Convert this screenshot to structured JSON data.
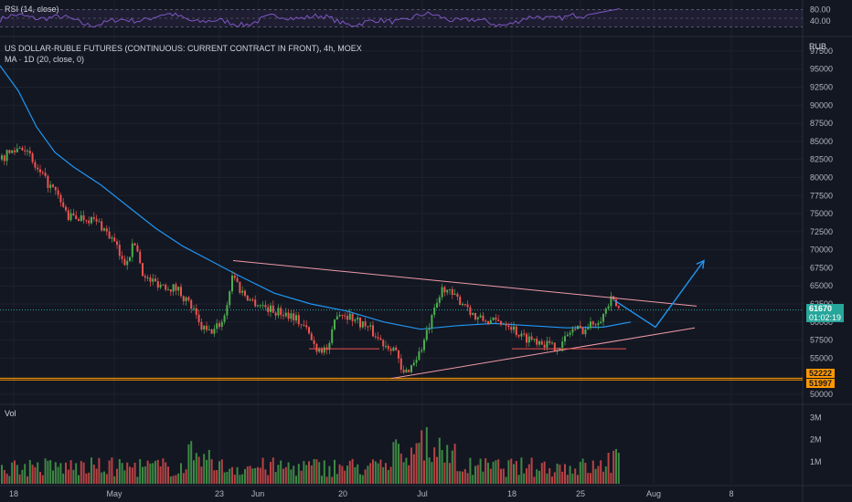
{
  "theme": {
    "background": "#131722",
    "grid": "#1e222d",
    "up_color": "#26a69a",
    "candle_up": "#4caf50",
    "candle_down": "#ef5350",
    "ma_color": "#2196f3",
    "pattern_color": "#ef9aa8",
    "support_color": "#ef5350",
    "projection_color": "#2196f3",
    "rsi_color": "#7e57c2",
    "level_color": "#ff9800"
  },
  "rsi_panel": {
    "label": "RSI (14, close)",
    "ticks": [
      "80.00",
      "40.00"
    ]
  },
  "header": {
    "title": "US DOLLAR-RUBLE FUTURES (CONTINUOUS: CURRENT CONTRACT IN FRONT), 4h, MOEX",
    "ma_label": "MA · 1D (20, close, 0)",
    "currency": "RUB"
  },
  "price_axis": {
    "ticks": [
      "97500",
      "95000",
      "92500",
      "90000",
      "87500",
      "85000",
      "82500",
      "80000",
      "77500",
      "75000",
      "72500",
      "70000",
      "67500",
      "65000",
      "62500",
      "60000",
      "57500",
      "55000",
      "50000"
    ]
  },
  "badges": {
    "last_price": "61670",
    "countdown": "01:02:19",
    "level_high": "52222",
    "level_low": "51997"
  },
  "volume_panel": {
    "label": "Vol",
    "ticks": [
      "3M",
      "2M",
      "1M"
    ]
  },
  "time_axis": {
    "ticks": [
      "18",
      "May",
      "23",
      "Jun",
      "20",
      "Jul",
      "18",
      "25",
      "Aug",
      "8"
    ]
  },
  "chart_data": {
    "type": "candlestick",
    "symbol": "US DOLLAR-RUBLE FUTURES (CONTINUOUS: CURRENT CONTRACT IN FRONT)",
    "interval": "4h",
    "exchange": "MOEX",
    "currency": "RUB",
    "price_range": [
      50000,
      98500
    ],
    "last_price": 61670,
    "close_path": [
      {
        "x": 0,
        "y": 82500
      },
      {
        "x": 12,
        "y": 83500
      },
      {
        "x": 25,
        "y": 84500
      },
      {
        "x": 40,
        "y": 81000
      },
      {
        "x": 60,
        "y": 78000
      },
      {
        "x": 75,
        "y": 74500
      },
      {
        "x": 95,
        "y": 74500
      },
      {
        "x": 110,
        "y": 73500
      },
      {
        "x": 125,
        "y": 71000
      },
      {
        "x": 135,
        "y": 68000
      },
      {
        "x": 148,
        "y": 71000
      },
      {
        "x": 158,
        "y": 66000
      },
      {
        "x": 170,
        "y": 65500
      },
      {
        "x": 195,
        "y": 64500
      },
      {
        "x": 210,
        "y": 62000
      },
      {
        "x": 218,
        "y": 59500
      },
      {
        "x": 228,
        "y": 58500
      },
      {
        "x": 235,
        "y": 59000
      },
      {
        "x": 245,
        "y": 60500
      },
      {
        "x": 255,
        "y": 67000
      },
      {
        "x": 262,
        "y": 64500
      },
      {
        "x": 275,
        "y": 63000
      },
      {
        "x": 300,
        "y": 61500
      },
      {
        "x": 320,
        "y": 61000
      },
      {
        "x": 335,
        "y": 59000
      },
      {
        "x": 345,
        "y": 56500
      },
      {
        "x": 360,
        "y": 56200
      },
      {
        "x": 368,
        "y": 61500
      },
      {
        "x": 380,
        "y": 61000
      },
      {
        "x": 400,
        "y": 59500
      },
      {
        "x": 420,
        "y": 57000
      },
      {
        "x": 432,
        "y": 56500
      },
      {
        "x": 440,
        "y": 52500
      },
      {
        "x": 450,
        "y": 54000
      },
      {
        "x": 460,
        "y": 56000
      },
      {
        "x": 470,
        "y": 59500
      },
      {
        "x": 485,
        "y": 65000
      },
      {
        "x": 495,
        "y": 63500
      },
      {
        "x": 510,
        "y": 62500
      },
      {
        "x": 520,
        "y": 60500
      },
      {
        "x": 540,
        "y": 60000
      },
      {
        "x": 555,
        "y": 60000
      },
      {
        "x": 570,
        "y": 58000
      },
      {
        "x": 590,
        "y": 57500
      },
      {
        "x": 605,
        "y": 56500
      },
      {
        "x": 615,
        "y": 57000
      },
      {
        "x": 625,
        "y": 59000
      },
      {
        "x": 640,
        "y": 59000
      },
      {
        "x": 650,
        "y": 60000
      },
      {
        "x": 660,
        "y": 61000
      },
      {
        "x": 668,
        "y": 63000
      },
      {
        "x": 678,
        "y": 61670
      }
    ],
    "moving_average": {
      "name": "MA · 1D (20, close, 0)",
      "points": [
        {
          "x": 0,
          "y": 95500
        },
        {
          "x": 20,
          "y": 92000
        },
        {
          "x": 40,
          "y": 87000
        },
        {
          "x": 60,
          "y": 83500
        },
        {
          "x": 80,
          "y": 81500
        },
        {
          "x": 110,
          "y": 79000
        },
        {
          "x": 140,
          "y": 76000
        },
        {
          "x": 170,
          "y": 73000
        },
        {
          "x": 200,
          "y": 70500
        },
        {
          "x": 230,
          "y": 68500
        },
        {
          "x": 260,
          "y": 66500
        },
        {
          "x": 300,
          "y": 64000
        },
        {
          "x": 340,
          "y": 62500
        },
        {
          "x": 380,
          "y": 61500
        },
        {
          "x": 420,
          "y": 60000
        },
        {
          "x": 460,
          "y": 59000
        },
        {
          "x": 500,
          "y": 59500
        },
        {
          "x": 540,
          "y": 59800
        },
        {
          "x": 580,
          "y": 59500
        },
        {
          "x": 620,
          "y": 59200
        },
        {
          "x": 660,
          "y": 59300
        },
        {
          "x": 690,
          "y": 60000
        }
      ]
    },
    "drawings": {
      "triangle_upper": [
        {
          "x": 255,
          "y": 68500
        },
        {
          "x": 762,
          "y": 62200
        }
      ],
      "triangle_lower": [
        {
          "x": 428,
          "y": 52200
        },
        {
          "x": 760,
          "y": 59200
        }
      ],
      "support_line_1": [
        {
          "x": 338,
          "y": 56300
        },
        {
          "x": 415,
          "y": 56300
        }
      ],
      "support_line_2": [
        {
          "x": 560,
          "y": 56300
        },
        {
          "x": 685,
          "y": 56300
        }
      ],
      "projection": [
        {
          "x": 672,
          "y": 63000
        },
        {
          "x": 717,
          "y": 59300
        },
        {
          "x": 770,
          "y": 68500
        }
      ],
      "levels": [
        52222,
        51997
      ]
    },
    "rsi": {
      "name": "RSI (14, close)",
      "ticks": [
        80,
        40
      ]
    },
    "volume_axis": [
      "3M",
      "2M",
      "1M"
    ]
  }
}
